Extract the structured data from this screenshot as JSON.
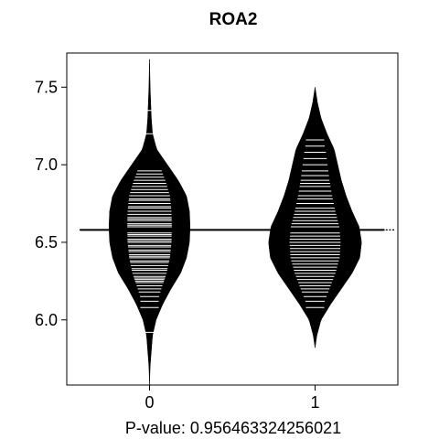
{
  "chart_data": {
    "type": "beanplot",
    "title": "ROA2",
    "xlabel": "P-value: 0.956463324256021",
    "ylabel": "",
    "categories": [
      "0",
      "1"
    ],
    "ylim": [
      5.58,
      7.72
    ],
    "y_ticks": [
      "6.0",
      "6.5",
      "7.0",
      "7.5"
    ],
    "overall_mean": 6.58,
    "series": [
      {
        "category": "0",
        "range": [
          5.58,
          7.68
        ],
        "density_profile": [
          [
            5.58,
            0.0
          ],
          [
            5.7,
            0.01
          ],
          [
            5.8,
            0.03
          ],
          [
            5.9,
            0.05
          ],
          [
            6.0,
            0.11
          ],
          [
            6.1,
            0.22
          ],
          [
            6.2,
            0.36
          ],
          [
            6.3,
            0.52
          ],
          [
            6.4,
            0.62
          ],
          [
            6.5,
            0.67
          ],
          [
            6.6,
            0.68
          ],
          [
            6.7,
            0.67
          ],
          [
            6.8,
            0.62
          ],
          [
            6.9,
            0.48
          ],
          [
            7.0,
            0.3
          ],
          [
            7.1,
            0.12
          ],
          [
            7.2,
            0.05
          ],
          [
            7.3,
            0.03
          ],
          [
            7.4,
            0.02
          ],
          [
            7.5,
            0.01
          ],
          [
            7.6,
            0.005
          ],
          [
            7.68,
            0.0
          ]
        ],
        "observations": [
          5.92,
          6.08,
          6.12,
          6.15,
          6.18,
          6.2,
          6.22,
          6.24,
          6.25,
          6.26,
          6.27,
          6.28,
          6.3,
          6.32,
          6.33,
          6.35,
          6.37,
          6.38,
          6.4,
          6.41,
          6.42,
          6.44,
          6.45,
          6.47,
          6.48,
          6.5,
          6.51,
          6.52,
          6.54,
          6.55,
          6.56,
          6.58,
          6.6,
          6.61,
          6.62,
          6.64,
          6.65,
          6.66,
          6.68,
          6.7,
          6.72,
          6.73,
          6.75,
          6.77,
          6.78,
          6.8,
          6.82,
          6.84,
          6.86,
          6.88,
          6.9,
          6.92,
          6.94,
          6.96,
          7.2,
          7.35
        ]
      },
      {
        "category": "1",
        "range": [
          5.82,
          7.5
        ],
        "density_profile": [
          [
            5.82,
            0.0
          ],
          [
            5.9,
            0.03
          ],
          [
            6.0,
            0.1
          ],
          [
            6.1,
            0.26
          ],
          [
            6.2,
            0.44
          ],
          [
            6.3,
            0.62
          ],
          [
            6.4,
            0.75
          ],
          [
            6.5,
            0.78
          ],
          [
            6.6,
            0.74
          ],
          [
            6.7,
            0.62
          ],
          [
            6.8,
            0.52
          ],
          [
            6.9,
            0.44
          ],
          [
            7.0,
            0.38
          ],
          [
            7.1,
            0.32
          ],
          [
            7.2,
            0.2
          ],
          [
            7.3,
            0.1
          ],
          [
            7.4,
            0.04
          ],
          [
            7.5,
            0.0
          ]
        ],
        "observations": [
          6.08,
          6.12,
          6.15,
          6.18,
          6.2,
          6.22,
          6.24,
          6.26,
          6.28,
          6.3,
          6.32,
          6.34,
          6.36,
          6.38,
          6.4,
          6.42,
          6.44,
          6.46,
          6.48,
          6.5,
          6.52,
          6.54,
          6.56,
          6.58,
          6.6,
          6.62,
          6.64,
          6.66,
          6.68,
          6.7,
          6.72,
          6.75,
          6.78,
          6.8,
          6.83,
          6.86,
          6.88,
          6.9,
          6.93,
          6.96,
          7.0,
          7.04,
          7.08,
          7.12,
          7.16
        ]
      }
    ],
    "grid": false,
    "legend": "none"
  }
}
